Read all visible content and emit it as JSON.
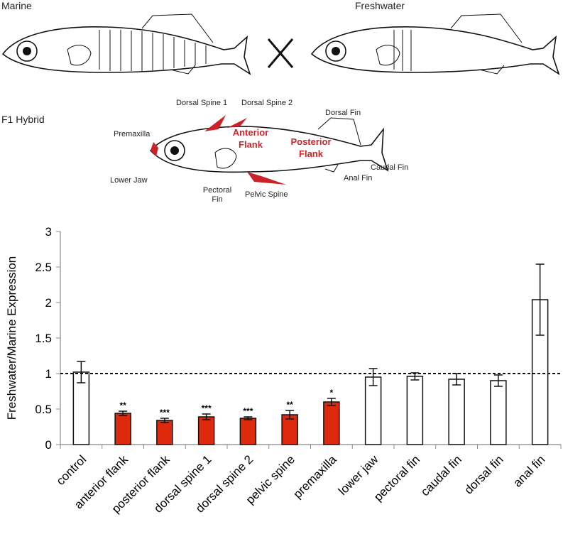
{
  "diagram": {
    "marine": "Marine",
    "freshwater": "Freshwater",
    "hybrid": "F1 Hybrid",
    "parts": {
      "dorsal_spine_1": "Dorsal Spine 1",
      "dorsal_spine_2": "Dorsal Spine 2",
      "dorsal_fin": "Dorsal Fin",
      "premaxilla": "Premaxilla",
      "anterior_flank": "Anterior Flank",
      "posterior_flank": "Posterior Flank",
      "lower_jaw": "Lower Jaw",
      "pectoral_fin": "Pectoral Fin",
      "pelvic_spine": "Pelvic Spine",
      "anal_fin": "Anal Fin",
      "caudal_fin": "Caudal Fin"
    }
  },
  "chart_data": {
    "type": "bar",
    "ylabel": "Freshwater/Marine Expression",
    "categories": [
      "control",
      "anterior flank",
      "posterior flank",
      "dorsal spine 1",
      "dorsal spine 2",
      "pelvic spine",
      "premaxilla",
      "lower jaw",
      "pectoral fin",
      "caudal fin",
      "dorsal fin",
      "anal fin"
    ],
    "values": [
      1.02,
      0.44,
      0.34,
      0.39,
      0.37,
      0.42,
      0.6,
      0.95,
      0.96,
      0.92,
      0.9,
      2.04
    ],
    "errors": [
      0.15,
      0.03,
      0.03,
      0.04,
      0.02,
      0.06,
      0.05,
      0.12,
      0.05,
      0.08,
      0.08,
      0.5
    ],
    "colors": [
      "#ffffff",
      "#dd2a0c",
      "#dd2a0c",
      "#dd2a0c",
      "#dd2a0c",
      "#dd2a0c",
      "#dd2a0c",
      "#ffffff",
      "#ffffff",
      "#ffffff",
      "#ffffff",
      "#ffffff"
    ],
    "annotations": [
      null,
      "**",
      "***",
      "***",
      "***",
      "**",
      "*",
      null,
      null,
      null,
      null,
      null
    ],
    "reference_line": 1,
    "ylim": [
      0,
      3
    ],
    "yticks": [
      0,
      0.5,
      1,
      1.5,
      2,
      2.5,
      3
    ]
  }
}
